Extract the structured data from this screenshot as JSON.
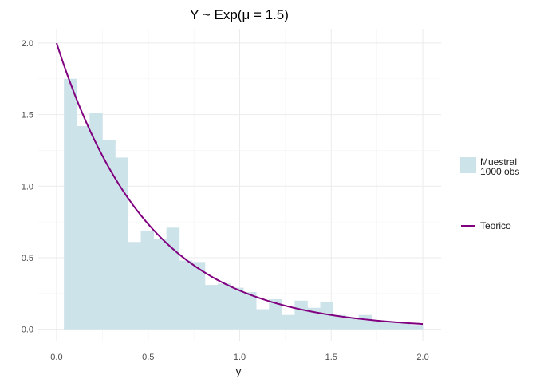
{
  "chart_data": {
    "type": "bar",
    "title": "Y ~ Exp(μ = 1.5)",
    "xlabel": "y",
    "ylabel": "",
    "xlim": [
      -0.1,
      2.1
    ],
    "ylim": [
      -0.08,
      2.1
    ],
    "x_ticks": [
      0.0,
      0.5,
      1.0,
      1.5,
      2.0
    ],
    "x_tick_labels": [
      "0.0",
      "0.5",
      "1.0",
      "1.5",
      "2.0"
    ],
    "y_ticks": [
      0.0,
      0.5,
      1.0,
      1.5,
      2.0
    ],
    "y_tick_labels": [
      "0.0",
      "0.5",
      "1.0",
      "1.5",
      "2.0"
    ],
    "grid": true,
    "legend_position": "right",
    "histogram": {
      "name": "Muestral\n 1000 obs",
      "color": "#cde3ea",
      "bin_edges": [
        0.04,
        0.11,
        0.18,
        0.25,
        0.32,
        0.39,
        0.46,
        0.53,
        0.6,
        0.67,
        0.74,
        0.81,
        0.88,
        0.95,
        1.02,
        1.09,
        1.16,
        1.23,
        1.3,
        1.37,
        1.44,
        1.51,
        1.58,
        1.65,
        1.72,
        1.79,
        1.86,
        1.93,
        2.0
      ],
      "density": [
        1.75,
        1.42,
        1.51,
        1.32,
        1.2,
        0.61,
        0.69,
        0.63,
        0.71,
        0.48,
        0.47,
        0.31,
        0.32,
        0.29,
        0.26,
        0.14,
        0.21,
        0.1,
        0.2,
        0.15,
        0.19,
        0.1,
        0.08,
        0.1,
        0.06,
        0.05,
        0.04,
        0.03
      ]
    },
    "curve": {
      "name": "Teorico",
      "color": "#800080",
      "function": "2·exp(−2y)",
      "x_range": [
        0.0,
        2.0
      ]
    }
  },
  "legend": {
    "items": [
      {
        "label_lines": [
          "Muestral",
          " 1000 obs"
        ],
        "kind": "fill",
        "color": "#cde3ea"
      },
      {
        "label_lines": [
          "Teorico"
        ],
        "kind": "line",
        "color": "#800080"
      }
    ]
  }
}
